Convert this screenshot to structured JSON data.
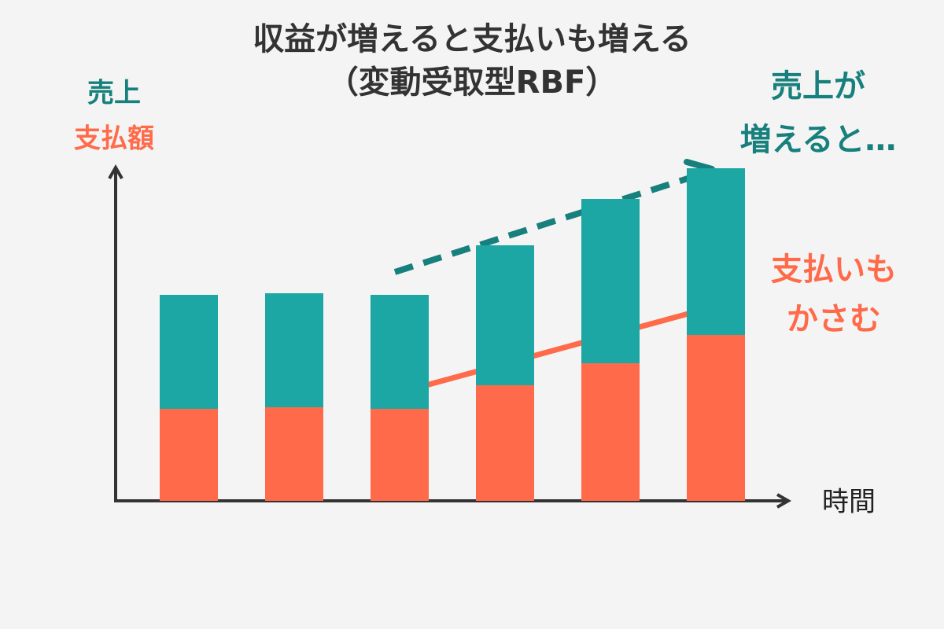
{
  "chart_data": {
    "type": "stacked_bar",
    "title": [
      "収益が増えると支払いも増える",
      "（変動受取型RBF）"
    ],
    "x_label": "時間",
    "categories": [
      null,
      null,
      null,
      null,
      null,
      null
    ],
    "series": [
      {
        "name": "支払額",
        "color": "#ff6b4a",
        "values": [
          117,
          119,
          117,
          147,
          175,
          211
        ]
      },
      {
        "name": "売上",
        "color": "#1ca6a4",
        "values": [
          145,
          145,
          145,
          178,
          209,
          212
        ]
      }
    ],
    "ylim": [
      0,
      425
    ],
    "annotations": [
      {
        "lines": [
          "売上が",
          "増えると…"
        ],
        "color": "#17807d"
      },
      {
        "lines": [
          "支払いも",
          "かさむ"
        ],
        "color": "#ff6b4a"
      }
    ]
  }
}
